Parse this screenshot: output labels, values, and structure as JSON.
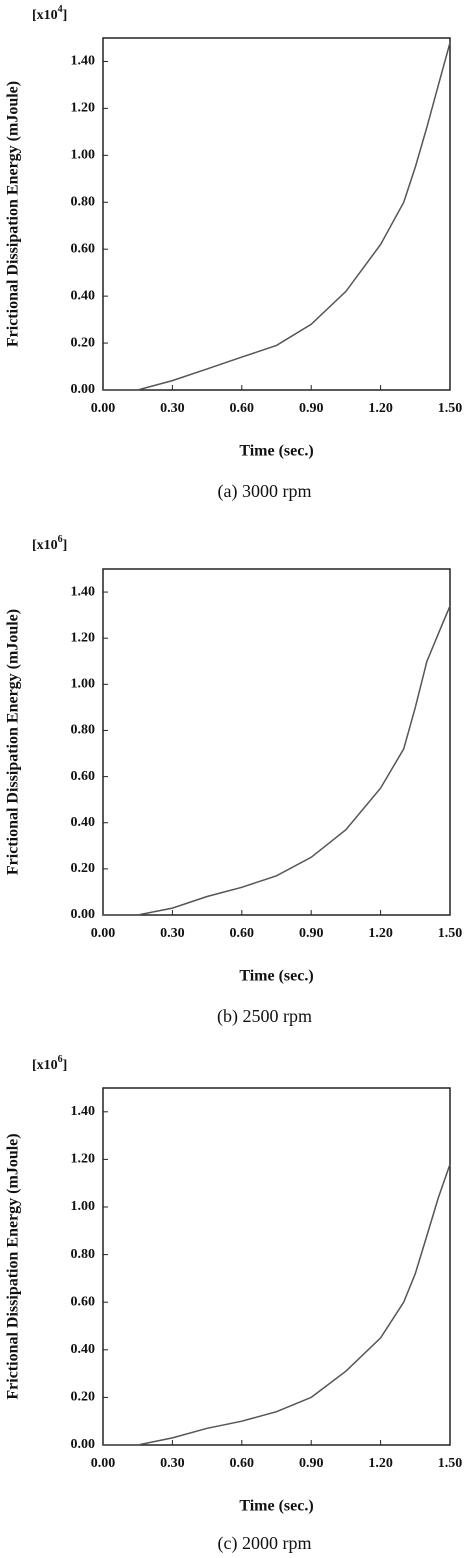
{
  "chart_data": [
    {
      "type": "line",
      "caption": "(a) 3000 rpm",
      "x_label": "Time (sec.)",
      "y_label": "Frictional Dissipation Energy (mJoule)",
      "y_scale_prefix": "[x10",
      "y_scale_exponent": "4",
      "y_scale_suffix": "]",
      "x": [
        0,
        0.15,
        0.3,
        0.45,
        0.6,
        0.75,
        0.9,
        1.05,
        1.2,
        1.3,
        1.35,
        1.4,
        1.45,
        1.5
      ],
      "series": [
        {
          "color": "#555555",
          "values": [
            0,
            0,
            0.04,
            0.09,
            0.14,
            0.19,
            0.28,
            0.42,
            0.62,
            0.8,
            0.95,
            1.12,
            1.3,
            1.48
          ]
        }
      ],
      "xlim": [
        0,
        1.5
      ],
      "ylim": [
        0,
        1.5
      ],
      "xticks": [
        {
          "value": 0,
          "label": "0.00"
        },
        {
          "value": 0.3,
          "label": "0.30"
        },
        {
          "value": 0.6,
          "label": "0.60"
        },
        {
          "value": 0.9,
          "label": "0.90"
        },
        {
          "value": 1.2,
          "label": "1.20"
        },
        {
          "value": 1.5,
          "label": "1.50"
        }
      ],
      "yticks": [
        {
          "value": 0,
          "label": "0.00"
        },
        {
          "value": 0.2,
          "label": "0.20"
        },
        {
          "value": 0.4,
          "label": "0.40"
        },
        {
          "value": 0.6,
          "label": "0.60"
        },
        {
          "value": 0.8,
          "label": "0.80"
        },
        {
          "value": 1,
          "label": "1.00"
        },
        {
          "value": 1.2,
          "label": "1.20"
        },
        {
          "value": 1.4,
          "label": "1.40"
        }
      ]
    },
    {
      "type": "line",
      "caption": "(b) 2500 rpm",
      "x_label": "Time (sec.)",
      "y_label": "Frictional Dissipation Energy (mJoule)",
      "y_scale_prefix": "[x10",
      "y_scale_exponent": "6",
      "y_scale_suffix": "]",
      "x": [
        0,
        0.15,
        0.3,
        0.45,
        0.6,
        0.75,
        0.9,
        1.05,
        1.2,
        1.3,
        1.35,
        1.4,
        1.45,
        1.5
      ],
      "series": [
        {
          "color": "#555555",
          "values": [
            0,
            0,
            0.03,
            0.08,
            0.12,
            0.17,
            0.25,
            0.37,
            0.55,
            0.72,
            0.9,
            1.1,
            1.22,
            1.34
          ]
        }
      ],
      "xlim": [
        0,
        1.5
      ],
      "ylim": [
        0,
        1.5
      ],
      "xticks": [
        {
          "value": 0,
          "label": "0.00"
        },
        {
          "value": 0.3,
          "label": "0.30"
        },
        {
          "value": 0.6,
          "label": "0.60"
        },
        {
          "value": 0.9,
          "label": "0.90"
        },
        {
          "value": 1.2,
          "label": "1.20"
        },
        {
          "value": 1.5,
          "label": "1.50"
        }
      ],
      "yticks": [
        {
          "value": 0,
          "label": "0.00"
        },
        {
          "value": 0.2,
          "label": "0.20"
        },
        {
          "value": 0.4,
          "label": "0.40"
        },
        {
          "value": 0.6,
          "label": "0.60"
        },
        {
          "value": 0.8,
          "label": "0.80"
        },
        {
          "value": 1,
          "label": "1.00"
        },
        {
          "value": 1.2,
          "label": "1.20"
        },
        {
          "value": 1.4,
          "label": "1.40"
        }
      ]
    },
    {
      "type": "line",
      "caption": "(c) 2000 rpm",
      "x_label": "Time (sec.)",
      "y_label": "Frictional Dissipation Energy (mJoule)",
      "y_scale_prefix": "[x10",
      "y_scale_exponent": "6",
      "y_scale_suffix": "]",
      "x": [
        0,
        0.15,
        0.3,
        0.45,
        0.6,
        0.75,
        0.9,
        1.05,
        1.2,
        1.3,
        1.35,
        1.4,
        1.45,
        1.5
      ],
      "series": [
        {
          "color": "#555555",
          "values": [
            0,
            0,
            0.03,
            0.07,
            0.1,
            0.14,
            0.2,
            0.31,
            0.45,
            0.6,
            0.72,
            0.88,
            1.04,
            1.18
          ]
        }
      ],
      "xlim": [
        0,
        1.5
      ],
      "ylim": [
        0,
        1.5
      ],
      "xticks": [
        {
          "value": 0,
          "label": "0.00"
        },
        {
          "value": 0.3,
          "label": "0.30"
        },
        {
          "value": 0.6,
          "label": "0.60"
        },
        {
          "value": 0.9,
          "label": "0.90"
        },
        {
          "value": 1.2,
          "label": "1.20"
        },
        {
          "value": 1.5,
          "label": "1.50"
        }
      ],
      "yticks": [
        {
          "value": 0,
          "label": "0.00"
        },
        {
          "value": 0.2,
          "label": "0.20"
        },
        {
          "value": 0.4,
          "label": "0.40"
        },
        {
          "value": 0.6,
          "label": "0.60"
        },
        {
          "value": 0.8,
          "label": "0.80"
        },
        {
          "value": 1,
          "label": "1.00"
        },
        {
          "value": 1.2,
          "label": "1.20"
        },
        {
          "value": 1.4,
          "label": "1.40"
        }
      ]
    }
  ]
}
